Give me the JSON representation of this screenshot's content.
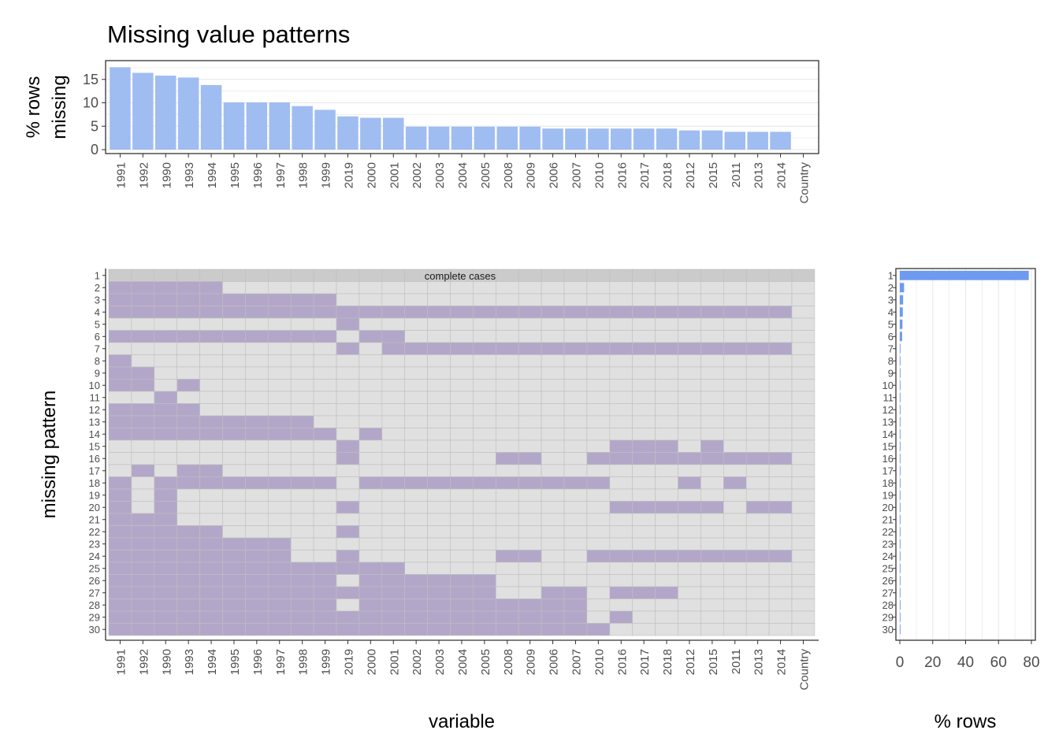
{
  "title": "Missing value patterns",
  "colors": {
    "missing": "#b3a7c9",
    "present": "#e0e0e0",
    "complete": "#cbcbcb",
    "bar_top": "#a0bdf1",
    "bar_right": "#6c9bef",
    "grid": "#e6e6e6",
    "cell_line": "#bfbfbf"
  },
  "chart_data": [
    {
      "type": "bar",
      "id": "missing-by-variable",
      "categories": [
        "1991",
        "1992",
        "1990",
        "1993",
        "1994",
        "1995",
        "1996",
        "1997",
        "1998",
        "1999",
        "2019",
        "2000",
        "2001",
        "2002",
        "2003",
        "2004",
        "2005",
        "2008",
        "2009",
        "2006",
        "2007",
        "2010",
        "2016",
        "2017",
        "2018",
        "2012",
        "2015",
        "2011",
        "2013",
        "2014",
        "Country"
      ],
      "values": [
        17.6,
        16.4,
        15.8,
        15.4,
        13.8,
        10.1,
        10.1,
        10.1,
        9.3,
        8.5,
        7.1,
        6.8,
        6.8,
        4.9,
        4.9,
        4.9,
        4.9,
        4.9,
        4.9,
        4.5,
        4.5,
        4.5,
        4.5,
        4.5,
        4.5,
        4.1,
        4.1,
        3.8,
        3.8,
        3.8,
        0
      ],
      "ylabel": "% rows\nmissing",
      "xlabel": "",
      "ylim": [
        0,
        18.5
      ],
      "yticks": [
        0,
        5,
        10,
        15
      ],
      "grid": true
    },
    {
      "type": "heatmap",
      "id": "missing-patterns",
      "x": [
        "1991",
        "1992",
        "1990",
        "1993",
        "1994",
        "1995",
        "1996",
        "1997",
        "1998",
        "1999",
        "2019",
        "2000",
        "2001",
        "2002",
        "2003",
        "2004",
        "2005",
        "2008",
        "2009",
        "2006",
        "2007",
        "2010",
        "2016",
        "2017",
        "2018",
        "2012",
        "2015",
        "2011",
        "2013",
        "2014",
        "Country"
      ],
      "y": [
        "1",
        "2",
        "3",
        "4",
        "5",
        "6",
        "7",
        "8",
        "9",
        "10",
        "11",
        "12",
        "13",
        "14",
        "15",
        "16",
        "17",
        "18",
        "19",
        "20",
        "21",
        "22",
        "23",
        "24",
        "25",
        "26",
        "27",
        "28",
        "29",
        "30"
      ],
      "missing_codes": [
        "0000000000000000000000000000000",
        "1111100000000000000000000000000",
        "1111111111000000000000000000000",
        "1111111111111111111111111111110",
        "0000000000100000000000000000000",
        "1111111111011000000000000000000",
        "0000000000101111111111111111110",
        "1000000000000000000000000000000",
        "1100000000000000000000000000000",
        "1101000000000000000000000000000",
        "0010000000000000000000000000000",
        "1111000000000000000000000000000",
        "1111111110000000000000000000000",
        "1111111111010000000000000000000",
        "0000000000100000000000111010000",
        "0000000000100000011001111111110",
        "0101100000000000000000000000000",
        "1011111111011111111111000101000",
        "1010000000000000000000000000000",
        "1010000000100000000000111110110",
        "1110000000000000000000000000000",
        "1111100000100000000000000000000",
        "1111111100000000000000000000000",
        "1111111100100000011001111111110",
        "1111111111111000000000000000000",
        "1111111111011111100000000000000",
        "1111111111111111100110111000000",
        "1111111111011111111110000000000",
        "1111111111111111111110100000000",
        "1111111111111111111111000000000"
      ],
      "annotation": "complete cases",
      "xlabel": "variable",
      "ylabel": "missing pattern"
    },
    {
      "type": "bar",
      "id": "percent-rows-by-pattern",
      "orientation": "horizontal",
      "categories": [
        "1",
        "2",
        "3",
        "4",
        "5",
        "6",
        "7",
        "8",
        "9",
        "10",
        "11",
        "12",
        "13",
        "14",
        "15",
        "16",
        "17",
        "18",
        "19",
        "20",
        "21",
        "22",
        "23",
        "24",
        "25",
        "26",
        "27",
        "28",
        "29",
        "30"
      ],
      "values": [
        78.4,
        2.6,
        2.0,
        1.8,
        1.6,
        1.4,
        0.4,
        0.4,
        0.4,
        0.4,
        0.4,
        0.4,
        0.4,
        0.4,
        0.4,
        0.4,
        0.4,
        0.4,
        0.4,
        0.4,
        0.4,
        0.4,
        0.4,
        0.4,
        0.4,
        0.4,
        0.4,
        0.4,
        0.4,
        0.4
      ],
      "xlabel": "% rows",
      "xlim": [
        0,
        80
      ],
      "xticks": [
        0,
        20,
        40,
        60,
        80
      ],
      "grid": true
    }
  ]
}
